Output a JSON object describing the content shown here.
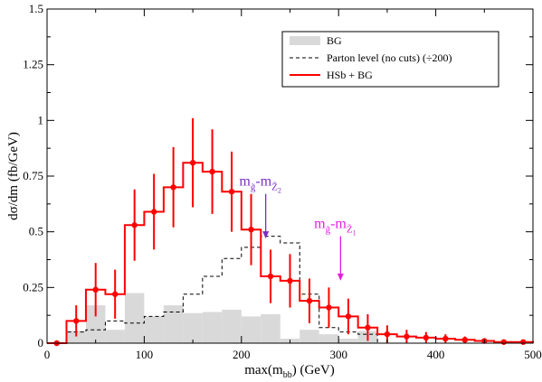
{
  "chart_data": {
    "type": "histogram",
    "xlabel": "max(m",
    "xlabel_sub": "bb",
    "xlabel_unit": ") (GeV)",
    "ylabel": "dσ/dm (fb/GeV)",
    "xlim": [
      0,
      500
    ],
    "ylim": [
      0,
      1.5
    ],
    "x_ticks": [
      "0",
      "100",
      "200",
      "300",
      "400",
      "500"
    ],
    "y_ticks": [
      "0",
      "0.25",
      "0.5",
      "0.75",
      "1",
      "1.25",
      "1.5"
    ],
    "grid": false,
    "legend_position": "top-right",
    "bin_edges": [
      0,
      20,
      40,
      60,
      80,
      100,
      120,
      140,
      160,
      180,
      200,
      220,
      240,
      260,
      280,
      300,
      320,
      340,
      360,
      380,
      400,
      420,
      440,
      460,
      480,
      500
    ],
    "series": [
      {
        "name": "BG",
        "style": "filled-step",
        "color": "#d9d9d9",
        "values": [
          0.0,
          0.055,
          0.17,
          0.06,
          0.225,
          0.12,
          0.17,
          0.135,
          0.14,
          0.15,
          0.12,
          0.13,
          0.02,
          0.06,
          0.04,
          0.02,
          0.055,
          0.0,
          0.0,
          0.0,
          0.0,
          0.0,
          0.0,
          0.0,
          0.0
        ]
      },
      {
        "name": "Parton level (no cuts) (÷200)",
        "style": "dashed-step",
        "color": "#000000",
        "values": [
          0.0,
          0.05,
          0.06,
          0.1,
          0.09,
          0.12,
          0.14,
          0.22,
          0.3,
          0.38,
          0.43,
          0.48,
          0.45,
          0.22,
          0.07,
          0.05,
          0.04,
          0.0,
          0.0,
          0.0,
          0.0,
          0.0,
          0.0,
          0.0,
          0.0
        ]
      },
      {
        "name": "HSb + BG",
        "style": "step-with-errors",
        "color": "#ff0000",
        "values": [
          0.0,
          0.1,
          0.24,
          0.22,
          0.53,
          0.59,
          0.7,
          0.81,
          0.77,
          0.68,
          0.51,
          0.3,
          0.28,
          0.19,
          0.16,
          0.12,
          0.07,
          0.04,
          0.03,
          0.025,
          0.02,
          0.015,
          0.01,
          0.005,
          0.005
        ],
        "errors": [
          0.0,
          0.07,
          0.12,
          0.11,
          0.16,
          0.17,
          0.18,
          0.2,
          0.19,
          0.18,
          0.16,
          0.12,
          0.12,
          0.1,
          0.09,
          0.08,
          0.06,
          0.04,
          0.03,
          0.025,
          0.02,
          0.015,
          0.012,
          0.01,
          0.01
        ]
      }
    ],
    "annotations": [
      {
        "label": "m",
        "sub1": "g̃",
        "dash": "-m",
        "sub2": "Z̃",
        "subsub2": "2",
        "x": 225,
        "y_tip": 0.47,
        "y_tail": 0.67,
        "color": "#7b2fbf"
      },
      {
        "label": "m",
        "sub1": "g̃",
        "dash": "-m",
        "sub2": "Z̃",
        "subsub2": "1",
        "x": 302,
        "y_tip": 0.28,
        "y_tail": 0.48,
        "color": "#e020e0"
      }
    ]
  }
}
